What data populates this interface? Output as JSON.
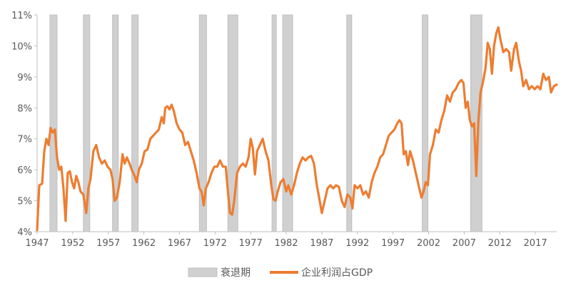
{
  "chart_data": {
    "type": "line",
    "title": "",
    "xlabel": "",
    "ylabel": "",
    "xlim": [
      1947,
      2020
    ],
    "ylim": [
      4,
      11
    ],
    "grid": false,
    "legend_position": "bottom",
    "x_ticks": [
      "1947",
      "1952",
      "1957",
      "1962",
      "1967",
      "1972",
      "1977",
      "1982",
      "1987",
      "1992",
      "1997",
      "2002",
      "2007",
      "2012",
      "2017"
    ],
    "y_ticks": [
      "4%",
      "5%",
      "6%",
      "7%",
      "8%",
      "9%",
      "10%",
      "11%"
    ],
    "recessions": [
      [
        1948.8,
        1949.8
      ],
      [
        1953.5,
        1954.4
      ],
      [
        1957.6,
        1958.4
      ],
      [
        1960.3,
        1961.2
      ],
      [
        1969.8,
        1970.8
      ],
      [
        1973.8,
        1975.2
      ],
      [
        1980.0,
        1980.6
      ],
      [
        1981.5,
        1982.9
      ],
      [
        1990.5,
        1991.2
      ],
      [
        2001.1,
        2001.9
      ],
      [
        2007.9,
        2009.5
      ]
    ],
    "series": [
      {
        "name": "企业利润占GDP",
        "color": "#ED7D31",
        "points": [
          [
            1947.0,
            4.05
          ],
          [
            1947.3,
            5.5
          ],
          [
            1947.7,
            5.55
          ],
          [
            1948.0,
            6.6
          ],
          [
            1948.3,
            7.0
          ],
          [
            1948.6,
            6.8
          ],
          [
            1948.9,
            7.35
          ],
          [
            1949.2,
            7.2
          ],
          [
            1949.5,
            7.3
          ],
          [
            1949.8,
            6.4
          ],
          [
            1950.1,
            6.0
          ],
          [
            1950.4,
            6.1
          ],
          [
            1950.7,
            5.4
          ],
          [
            1951.0,
            4.35
          ],
          [
            1951.3,
            5.9
          ],
          [
            1951.6,
            5.95
          ],
          [
            1951.9,
            5.6
          ],
          [
            1952.2,
            5.4
          ],
          [
            1952.5,
            5.8
          ],
          [
            1952.8,
            5.6
          ],
          [
            1953.1,
            5.3
          ],
          [
            1953.5,
            5.2
          ],
          [
            1953.9,
            4.6
          ],
          [
            1954.2,
            5.4
          ],
          [
            1954.5,
            5.7
          ],
          [
            1954.9,
            6.6
          ],
          [
            1955.3,
            6.8
          ],
          [
            1955.7,
            6.4
          ],
          [
            1956.1,
            6.2
          ],
          [
            1956.5,
            6.3
          ],
          [
            1956.9,
            6.1
          ],
          [
            1957.3,
            6.0
          ],
          [
            1957.6,
            5.7
          ],
          [
            1957.9,
            5.0
          ],
          [
            1958.2,
            5.1
          ],
          [
            1958.6,
            5.6
          ],
          [
            1959.0,
            6.5
          ],
          [
            1959.3,
            6.2
          ],
          [
            1959.6,
            6.4
          ],
          [
            1960.0,
            6.2
          ],
          [
            1960.3,
            6.0
          ],
          [
            1960.7,
            5.8
          ],
          [
            1961.0,
            5.6
          ],
          [
            1961.3,
            6.0
          ],
          [
            1961.7,
            6.2
          ],
          [
            1962.1,
            6.6
          ],
          [
            1962.5,
            6.65
          ],
          [
            1962.9,
            7.0
          ],
          [
            1963.3,
            7.1
          ],
          [
            1963.7,
            7.2
          ],
          [
            1964.1,
            7.3
          ],
          [
            1964.5,
            7.7
          ],
          [
            1964.8,
            7.5
          ],
          [
            1965.0,
            8.0
          ],
          [
            1965.3,
            8.05
          ],
          [
            1965.6,
            7.95
          ],
          [
            1965.9,
            8.1
          ],
          [
            1966.2,
            7.9
          ],
          [
            1966.6,
            7.5
          ],
          [
            1967.0,
            7.3
          ],
          [
            1967.4,
            7.2
          ],
          [
            1967.8,
            6.8
          ],
          [
            1968.2,
            6.9
          ],
          [
            1968.6,
            6.6
          ],
          [
            1969.0,
            6.3
          ],
          [
            1969.4,
            5.9
          ],
          [
            1969.8,
            5.4
          ],
          [
            1970.1,
            5.3
          ],
          [
            1970.4,
            4.85
          ],
          [
            1970.7,
            5.4
          ],
          [
            1971.1,
            5.6
          ],
          [
            1971.5,
            5.9
          ],
          [
            1971.9,
            6.1
          ],
          [
            1972.3,
            6.1
          ],
          [
            1972.7,
            6.3
          ],
          [
            1973.1,
            6.1
          ],
          [
            1973.5,
            6.1
          ],
          [
            1973.8,
            5.3
          ],
          [
            1974.1,
            4.6
          ],
          [
            1974.4,
            4.55
          ],
          [
            1974.7,
            5.0
          ],
          [
            1975.1,
            5.9
          ],
          [
            1975.5,
            6.1
          ],
          [
            1975.9,
            6.2
          ],
          [
            1976.3,
            6.1
          ],
          [
            1976.7,
            6.4
          ],
          [
            1977.0,
            7.0
          ],
          [
            1977.3,
            6.7
          ],
          [
            1977.6,
            5.85
          ],
          [
            1977.9,
            6.6
          ],
          [
            1978.3,
            6.8
          ],
          [
            1978.7,
            7.0
          ],
          [
            1979.1,
            6.6
          ],
          [
            1979.5,
            6.3
          ],
          [
            1979.9,
            5.5
          ],
          [
            1980.2,
            5.05
          ],
          [
            1980.5,
            5.0
          ],
          [
            1980.8,
            5.3
          ],
          [
            1981.2,
            5.6
          ],
          [
            1981.6,
            5.7
          ],
          [
            1982.0,
            5.3
          ],
          [
            1982.3,
            5.5
          ],
          [
            1982.7,
            5.2
          ],
          [
            1983.1,
            5.5
          ],
          [
            1983.5,
            5.9
          ],
          [
            1983.9,
            6.2
          ],
          [
            1984.3,
            6.4
          ],
          [
            1984.7,
            6.3
          ],
          [
            1985.1,
            6.4
          ],
          [
            1985.5,
            6.45
          ],
          [
            1985.9,
            6.2
          ],
          [
            1986.3,
            5.5
          ],
          [
            1986.7,
            5.0
          ],
          [
            1987.0,
            4.6
          ],
          [
            1987.4,
            5.0
          ],
          [
            1987.8,
            5.4
          ],
          [
            1988.2,
            5.5
          ],
          [
            1988.6,
            5.4
          ],
          [
            1989.0,
            5.5
          ],
          [
            1989.4,
            5.45
          ],
          [
            1989.8,
            5.0
          ],
          [
            1990.2,
            4.8
          ],
          [
            1990.6,
            5.2
          ],
          [
            1991.0,
            5.1
          ],
          [
            1991.3,
            4.75
          ],
          [
            1991.6,
            5.5
          ],
          [
            1992.0,
            5.4
          ],
          [
            1992.4,
            5.5
          ],
          [
            1992.8,
            5.2
          ],
          [
            1993.2,
            5.3
          ],
          [
            1993.6,
            5.1
          ],
          [
            1994.0,
            5.6
          ],
          [
            1994.4,
            5.9
          ],
          [
            1994.8,
            6.1
          ],
          [
            1995.2,
            6.4
          ],
          [
            1995.6,
            6.5
          ],
          [
            1996.0,
            6.8
          ],
          [
            1996.4,
            7.1
          ],
          [
            1996.8,
            7.2
          ],
          [
            1997.2,
            7.3
          ],
          [
            1997.6,
            7.5
          ],
          [
            1997.9,
            7.6
          ],
          [
            1998.2,
            7.5
          ],
          [
            1998.5,
            6.5
          ],
          [
            1998.8,
            6.6
          ],
          [
            1999.1,
            6.15
          ],
          [
            1999.4,
            6.6
          ],
          [
            1999.8,
            6.3
          ],
          [
            2000.2,
            5.9
          ],
          [
            2000.6,
            5.5
          ],
          [
            2001.0,
            5.1
          ],
          [
            2001.3,
            5.3
          ],
          [
            2001.6,
            5.6
          ],
          [
            2001.9,
            5.5
          ],
          [
            2002.2,
            6.5
          ],
          [
            2002.6,
            6.8
          ],
          [
            2003.0,
            7.3
          ],
          [
            2003.4,
            7.2
          ],
          [
            2003.8,
            7.6
          ],
          [
            2004.2,
            7.9
          ],
          [
            2004.6,
            8.4
          ],
          [
            2005.0,
            8.2
          ],
          [
            2005.4,
            8.5
          ],
          [
            2005.8,
            8.6
          ],
          [
            2006.2,
            8.8
          ],
          [
            2006.6,
            8.9
          ],
          [
            2006.9,
            8.8
          ],
          [
            2007.2,
            8.0
          ],
          [
            2007.5,
            8.2
          ],
          [
            2007.8,
            7.6
          ],
          [
            2008.1,
            7.4
          ],
          [
            2008.4,
            7.5
          ],
          [
            2008.7,
            5.8
          ],
          [
            2009.0,
            7.6
          ],
          [
            2009.3,
            8.5
          ],
          [
            2009.7,
            8.9
          ],
          [
            2010.0,
            9.3
          ],
          [
            2010.3,
            10.1
          ],
          [
            2010.6,
            9.9
          ],
          [
            2010.9,
            9.1
          ],
          [
            2011.2,
            10.0
          ],
          [
            2011.5,
            10.4
          ],
          [
            2011.8,
            10.6
          ],
          [
            2012.1,
            10.2
          ],
          [
            2012.5,
            9.8
          ],
          [
            2012.9,
            9.9
          ],
          [
            2013.3,
            9.8
          ],
          [
            2013.6,
            9.2
          ],
          [
            2014.0,
            9.9
          ],
          [
            2014.3,
            10.1
          ],
          [
            2014.7,
            9.5
          ],
          [
            2015.0,
            9.2
          ],
          [
            2015.3,
            8.7
          ],
          [
            2015.7,
            8.9
          ],
          [
            2016.1,
            8.6
          ],
          [
            2016.5,
            8.7
          ],
          [
            2016.9,
            8.6
          ],
          [
            2017.3,
            8.7
          ],
          [
            2017.7,
            8.6
          ],
          [
            2018.1,
            9.1
          ],
          [
            2018.5,
            8.9
          ],
          [
            2018.9,
            9.0
          ],
          [
            2019.2,
            8.5
          ],
          [
            2019.6,
            8.7
          ],
          [
            2020.0,
            8.75
          ]
        ]
      }
    ],
    "legend": [
      {
        "label": "衰退期",
        "type": "box",
        "color": "#D0D0D0"
      },
      {
        "label": "企业利润占GDP",
        "type": "line",
        "color": "#ED7D31"
      }
    ]
  }
}
